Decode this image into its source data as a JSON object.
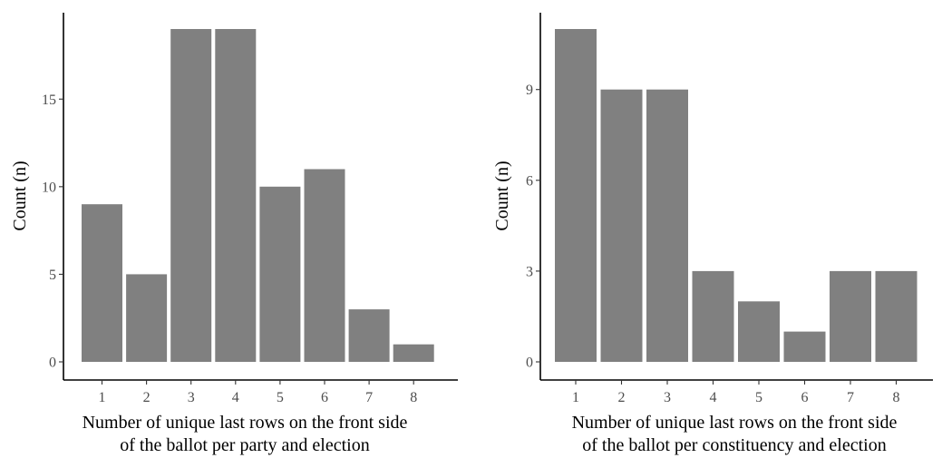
{
  "chart_data": [
    {
      "type": "bar",
      "title": "",
      "categories": [
        "1",
        "2",
        "3",
        "4",
        "5",
        "6",
        "7",
        "8"
      ],
      "values": [
        9,
        5,
        19,
        19,
        10,
        11,
        3,
        1
      ],
      "xlabel_lines": [
        "Number of unique last rows on the front side",
        "of the ballot per party and election"
      ],
      "ylabel": "Count (n)",
      "yticks": [
        "0",
        "5",
        "10",
        "15"
      ],
      "ylim": [
        0,
        19
      ],
      "grid": false,
      "bar_color": "#808080"
    },
    {
      "type": "bar",
      "title": "",
      "categories": [
        "1",
        "2",
        "3",
        "4",
        "5",
        "6",
        "7",
        "8"
      ],
      "values": [
        11,
        9,
        9,
        3,
        2,
        1,
        3,
        3
      ],
      "xlabel_lines": [
        "Number of unique last rows on the front side",
        "of the ballot per constituency and election"
      ],
      "ylabel": "Count (n)",
      "yticks": [
        "0",
        "3",
        "6",
        "9"
      ],
      "ylim": [
        0,
        11
      ],
      "grid": false,
      "bar_color": "#808080"
    }
  ]
}
